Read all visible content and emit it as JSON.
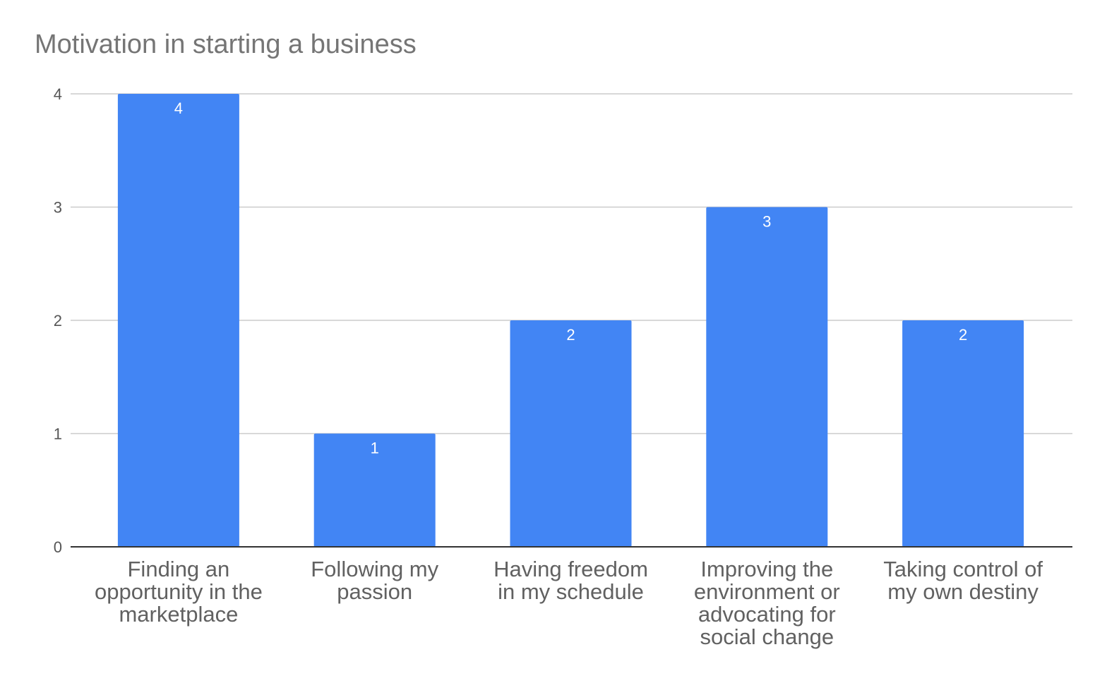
{
  "chart_data": {
    "type": "bar",
    "title": "Motivation in starting a business",
    "xlabel": "",
    "ylabel": "",
    "categories": [
      "Finding an opportunity in the marketplace",
      "Following my passion",
      "Having freedom in my schedule",
      "Improving the environment or advocating for social change",
      "Taking control of my own destiny"
    ],
    "category_lines": [
      [
        "Finding an",
        "opportunity in the",
        "marketplace"
      ],
      [
        "Following my",
        "passion"
      ],
      [
        "Having freedom",
        "in my schedule"
      ],
      [
        "Improving the",
        "environment or",
        "advocating for",
        "social change"
      ],
      [
        "Taking control of",
        "my own destiny"
      ]
    ],
    "values": [
      4,
      1,
      2,
      3,
      2
    ],
    "data_labels": [
      "4",
      "1",
      "2",
      "3",
      "2"
    ],
    "ylim": [
      0,
      4
    ],
    "yticks": [
      "0",
      "1",
      "2",
      "3",
      "4"
    ],
    "grid": true,
    "legend": "none",
    "bar_color": "#4285f4"
  }
}
